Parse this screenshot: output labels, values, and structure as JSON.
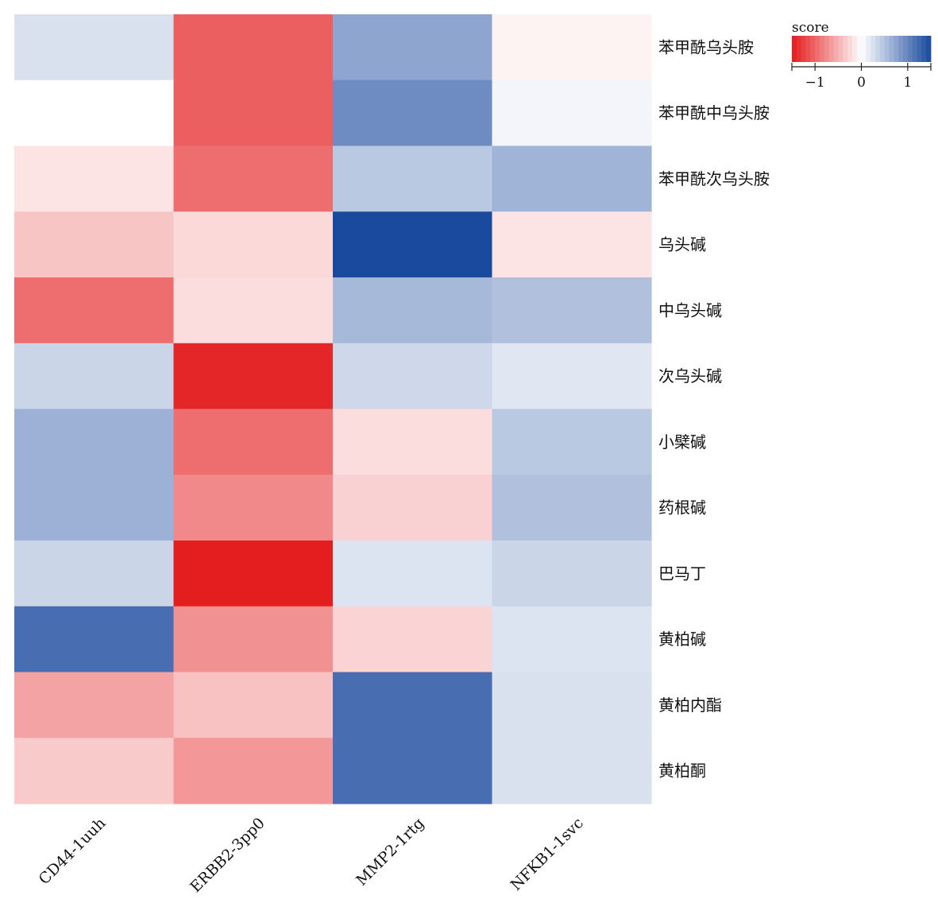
{
  "chart_data": {
    "type": "heatmap",
    "rows": [
      "苯甲酰乌头胺",
      "苯甲酰中乌头胺",
      "苯甲酰次乌头胺",
      "乌头碱",
      "中乌头碱",
      "次乌头碱",
      "小檗碱",
      "药根碱",
      "巴马丁",
      "黄柏碱",
      "黄柏内酯",
      "黄柏酮"
    ],
    "columns": [
      "CD44-1uuh",
      "ERBB2-3pp0",
      "MMP2-1rtg",
      "NFKB1-1svc"
    ],
    "values": [
      [
        0.25,
        -1.05,
        0.75,
        -0.08
      ],
      [
        0.0,
        -1.05,
        0.95,
        0.08
      ],
      [
        -0.18,
        -0.95,
        0.45,
        0.62
      ],
      [
        -0.38,
        -0.25,
        1.5,
        -0.18
      ],
      [
        -0.95,
        -0.22,
        0.58,
        0.52
      ],
      [
        0.35,
        -1.42,
        0.32,
        0.2
      ],
      [
        0.65,
        -0.95,
        -0.22,
        0.45
      ],
      [
        0.65,
        -0.78,
        -0.3,
        0.52
      ],
      [
        0.35,
        -1.48,
        0.22,
        0.35
      ],
      [
        1.2,
        -0.72,
        -0.28,
        0.22
      ],
      [
        -0.6,
        -0.4,
        1.2,
        0.25
      ],
      [
        -0.35,
        -0.68,
        1.2,
        0.25
      ]
    ],
    "legend": {
      "title": "score",
      "ticks": [
        -1,
        0,
        1
      ],
      "tick_labels": [
        "−1",
        "0",
        "1"
      ],
      "range": [
        -1.5,
        1.5
      ],
      "low_color": "#e41a1c",
      "mid_color": "#ffffff",
      "high_color": "#1a4a9e"
    }
  }
}
